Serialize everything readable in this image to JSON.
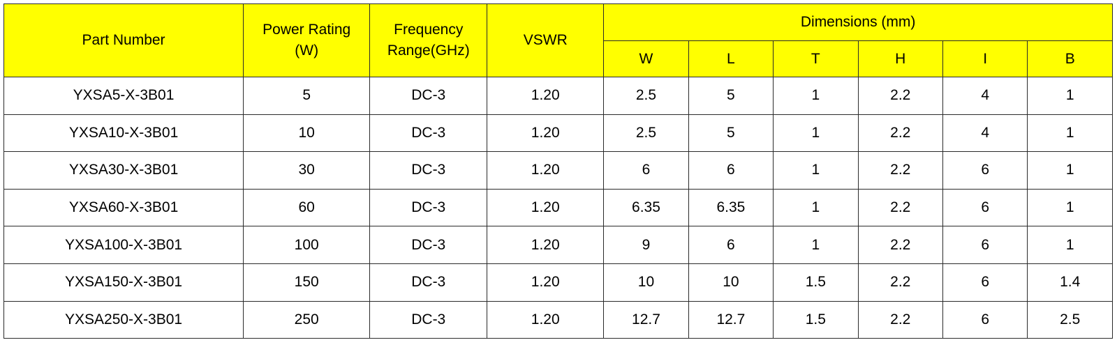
{
  "table": {
    "headers": {
      "part_number": "Part Number",
      "power_rating": [
        "Power Rating",
        "(W)"
      ],
      "frequency_range": [
        "Frequency",
        "Range(GHz)"
      ],
      "vswr": "VSWR",
      "dimensions": "Dimensions (mm)",
      "dimension_columns": [
        "W",
        "L",
        "T",
        "H",
        "I",
        "B"
      ]
    },
    "rows": [
      [
        "YXSA5-X-3B01",
        "5",
        "DC-3",
        "1.20",
        "2.5",
        "5",
        "1",
        "2.2",
        "4",
        "1"
      ],
      [
        "YXSA10-X-3B01",
        "10",
        "DC-3",
        "1.20",
        "2.5",
        "5",
        "1",
        "2.2",
        "4",
        "1"
      ],
      [
        "YXSA30-X-3B01",
        "30",
        "DC-3",
        "1.20",
        "6",
        "6",
        "1",
        "2.2",
        "6",
        "1"
      ],
      [
        "YXSA60-X-3B01",
        "60",
        "DC-3",
        "1.20",
        "6.35",
        "6.35",
        "1",
        "2.2",
        "6",
        "1"
      ],
      [
        "YXSA100-X-3B01",
        "100",
        "DC-3",
        "1.20",
        "9",
        "6",
        "1",
        "2.2",
        "6",
        "1"
      ],
      [
        "YXSA150-X-3B01",
        "150",
        "DC-3",
        "1.20",
        "10",
        "10",
        "1.5",
        "2.2",
        "6",
        "1.4"
      ],
      [
        "YXSA250-X-3B01",
        "250",
        "DC-3",
        "1.20",
        "12.7",
        "12.7",
        "1.5",
        "2.2",
        "6",
        "2.5"
      ]
    ]
  },
  "colors": {
    "header_background": "#ffff00",
    "border": "#2a2a2a",
    "body_background": "#ffffff",
    "text": "#000000"
  }
}
